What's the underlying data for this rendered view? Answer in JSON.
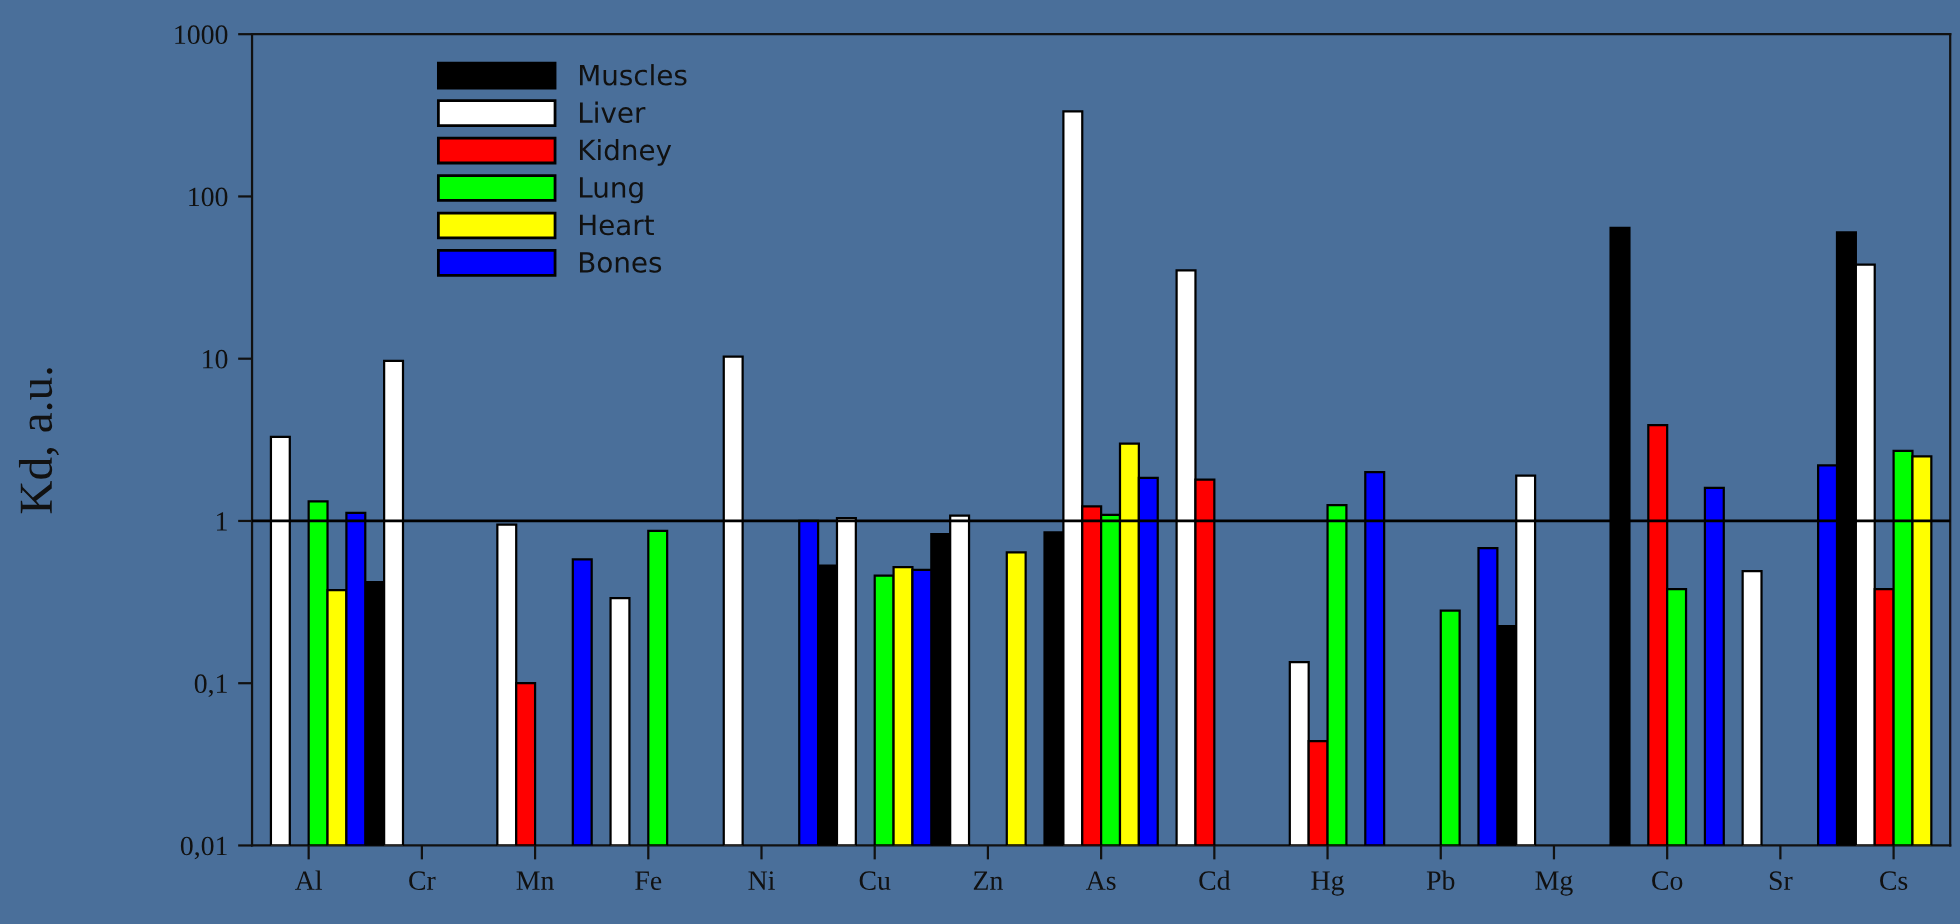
{
  "chart_data": {
    "type": "bar",
    "ylabel": "Kd, a.u.",
    "categories": [
      "Al",
      "Cr",
      "Mn",
      "Fe",
      "Ni",
      "Cu",
      "Zn",
      "As",
      "Cd",
      "Hg",
      "Pb",
      "Mg",
      "Co",
      "Sr",
      "Cs"
    ],
    "series": [
      {
        "name": "Muscles",
        "color": "#000000",
        "values": [
          null,
          0.42,
          null,
          null,
          null,
          0.53,
          0.83,
          0.85,
          null,
          null,
          null,
          0.225,
          64,
          null,
          60
        ]
      },
      {
        "name": "Liver",
        "color": "#ffffff",
        "values": [
          3.3,
          9.7,
          0.95,
          0.335,
          10.3,
          1.04,
          1.08,
          334,
          35,
          0.135,
          null,
          1.9,
          null,
          0.49,
          38
        ]
      },
      {
        "name": "Kidney",
        "color": "#ff0000",
        "values": [
          null,
          null,
          0.1,
          null,
          null,
          null,
          null,
          1.23,
          1.8,
          0.044,
          null,
          null,
          3.9,
          null,
          0.38
        ]
      },
      {
        "name": "Lung",
        "color": "#00ff00",
        "values": [
          1.32,
          null,
          null,
          0.87,
          null,
          0.46,
          null,
          1.09,
          null,
          1.25,
          0.28,
          null,
          0.38,
          null,
          2.7
        ]
      },
      {
        "name": "Heart",
        "color": "#ffff00",
        "values": [
          0.375,
          null,
          null,
          null,
          null,
          0.52,
          0.64,
          3.0,
          null,
          null,
          null,
          null,
          null,
          null,
          2.5
        ]
      },
      {
        "name": "Bones",
        "color": "#0000ff",
        "values": [
          1.12,
          null,
          0.58,
          null,
          1.0,
          0.5,
          null,
          1.84,
          null,
          2.0,
          0.68,
          null,
          1.6,
          2.2,
          null
        ]
      }
    ],
    "log": "y",
    "ylim": [
      0.01,
      1000
    ],
    "yticks": [
      {
        "value": 0.01,
        "label": "0,01"
      },
      {
        "value": 0.1,
        "label": "0,1"
      },
      1,
      10,
      100,
      1000
    ],
    "ref_lines": [
      {
        "axis": "y",
        "value": 1,
        "color": "#000000"
      }
    ],
    "grid": false,
    "legend": "top left"
  }
}
